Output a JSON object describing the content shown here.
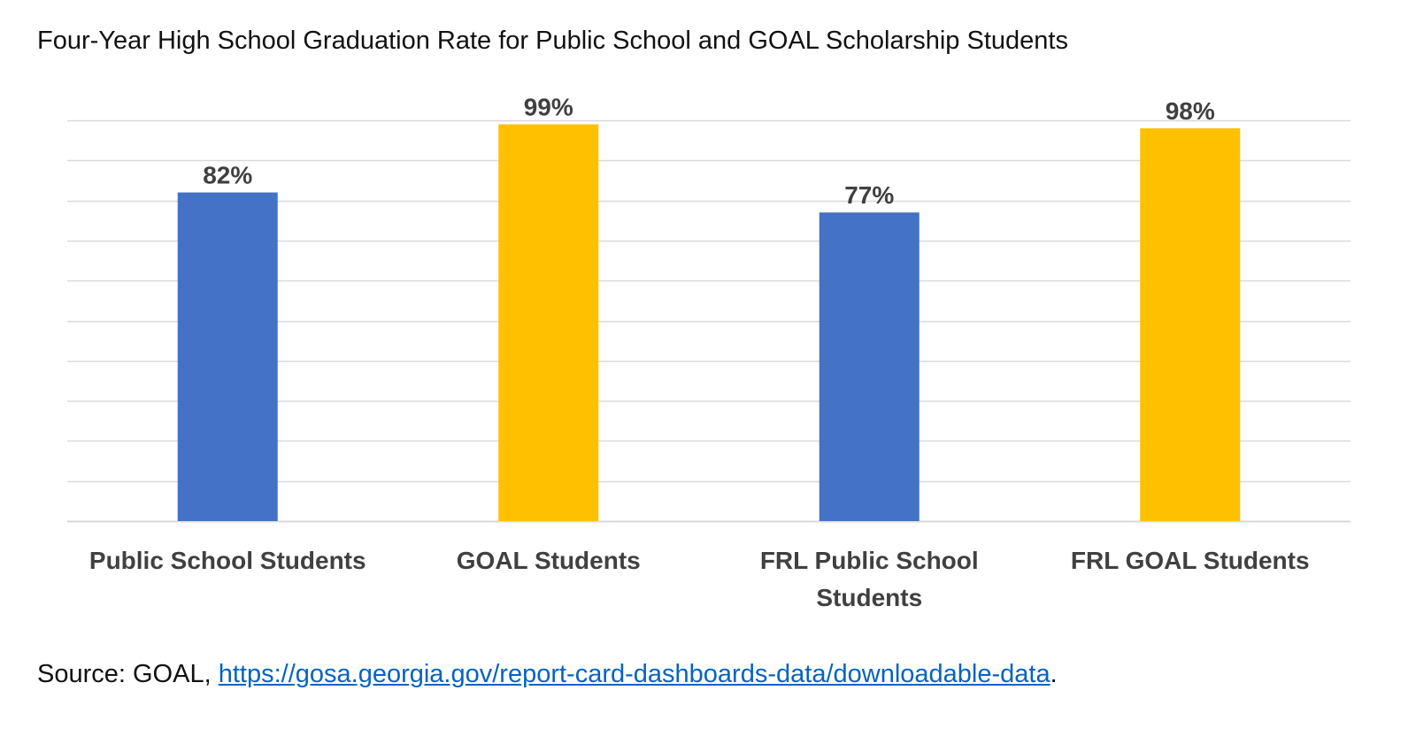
{
  "chart_data": {
    "type": "bar",
    "title": "Four-Year High School Graduation Rate for Public School and GOAL Scholarship Students",
    "categories": [
      [
        "Public School Students"
      ],
      [
        "GOAL Students"
      ],
      [
        "FRL Public School",
        "Students"
      ],
      [
        "FRL GOAL Students"
      ]
    ],
    "values": [
      82,
      99,
      77,
      98
    ],
    "value_labels": [
      "82%",
      "99%",
      "77%",
      "98%"
    ],
    "colors": [
      "#4472c4",
      "#ffc000",
      "#4472c4",
      "#ffc000"
    ],
    "ylim": [
      0,
      100
    ],
    "grid": true,
    "xlabel": "",
    "ylabel": ""
  },
  "source": {
    "prefix": "Source: GOAL, ",
    "link_text": "https://gosa.georgia.gov/report-card-dashboards-data/downloadable-data",
    "suffix": "."
  },
  "colors": {
    "gridline": "#d9d9d9",
    "axis_text": "#404040",
    "link": "#0563c1"
  }
}
